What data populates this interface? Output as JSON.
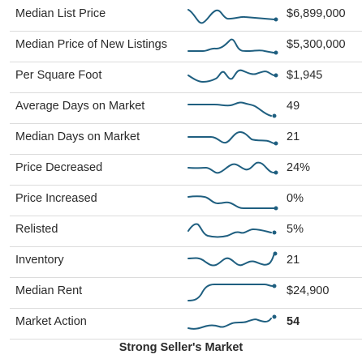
{
  "theme": {
    "sparkline_color": "#1f5f80",
    "divider_color": "#dcdcdc"
  },
  "rows": [
    {
      "label": "Median List Price",
      "value": "$6,899,000"
    },
    {
      "label": "Median Price of New Listings",
      "value": "$5,300,000"
    },
    {
      "label": "Per Square Foot",
      "value": "$1,945"
    },
    {
      "label": "Average Days on Market",
      "value": "49"
    },
    {
      "label": "Median Days on Market",
      "value": "21"
    },
    {
      "label": "Price Decreased",
      "value": "24%"
    },
    {
      "label": "Price Increased",
      "value": "0%"
    },
    {
      "label": "Relisted",
      "value": "5%"
    },
    {
      "label": "Inventory",
      "value": "21"
    },
    {
      "label": "Median Rent",
      "value": "$24,900"
    },
    {
      "label": "Market Action",
      "value": "54"
    }
  ],
  "footer": {
    "market_label": "Strong Seller's Market"
  }
}
